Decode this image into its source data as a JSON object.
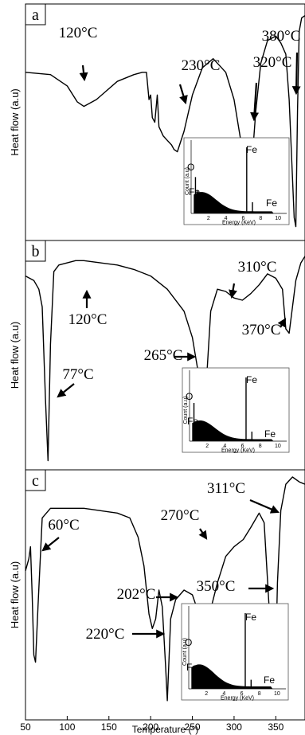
{
  "chart_data": {
    "type": "line",
    "xlabel": "Temperature (°)",
    "xlim": [
      50,
      385
    ],
    "x_ticks": [
      "50",
      "100",
      "150",
      "200",
      "250",
      "300",
      "350"
    ],
    "ylabel": "Heat flow (a.u)",
    "panels": [
      {
        "panel_label": "a",
        "ylabel": "Heat flow (a.u)",
        "series": [
          {
            "x": [
              50,
              80,
              100,
              112,
              120,
              135,
              160,
              180,
              190,
              195,
              198,
              200,
              202,
              205,
              208,
              210,
              215,
              220,
              225,
              228,
              232,
              240,
              250,
              262,
              275,
              290,
              300,
              308,
              312,
              318,
              322,
              326,
              332,
              340,
              350,
              356,
              362,
              366,
              372,
              374,
              376,
              378,
              381,
              385
            ],
            "y": [
              0.72,
              0.71,
              0.66,
              0.59,
              0.57,
              0.6,
              0.68,
              0.71,
              0.72,
              0.72,
              0.6,
              0.62,
              0.52,
              0.5,
              0.62,
              0.48,
              0.44,
              0.42,
              0.4,
              0.38,
              0.37,
              0.46,
              0.62,
              0.74,
              0.78,
              0.72,
              0.6,
              0.42,
              0.3,
              0.28,
              0.35,
              0.55,
              0.76,
              0.86,
              0.88,
              0.85,
              0.8,
              0.6,
              0.08,
              0.04,
              0.55,
              0.9,
              0.96,
              0.97
            ]
          }
        ],
        "annotations": [
          {
            "text": "120°C",
            "x": 120
          },
          {
            "text": "230°C",
            "x": 230
          },
          {
            "text": "320°C",
            "x": 320
          },
          {
            "text": "380°C",
            "x": 374
          }
        ],
        "inset": {
          "element_labels": [
            "O",
            "Fe",
            "Fe",
            "Fe"
          ],
          "xlabel": "Energy (KeV)",
          "ylabel": "Count (a.u)",
          "x_ticks": [
            "2",
            "4",
            "6",
            "8",
            "10"
          ],
          "xlim": [
            0,
            11
          ],
          "peaks": [
            {
              "x": 0.5,
              "y": 0.55
            },
            {
              "x": 0.7,
              "y": 0.35
            },
            {
              "x": 6.4,
              "y": 1.0
            },
            {
              "x": 7.06,
              "y": 0.17
            }
          ]
        }
      },
      {
        "panel_label": "b",
        "ylabel": "Heat flow (a.u)",
        "series": [
          {
            "x": [
              50,
              60,
              66,
              70,
              74,
              77,
              80,
              84,
              90,
              100,
              110,
              120,
              140,
              160,
              180,
              200,
              220,
              240,
              250,
              258,
              262,
              265,
              268,
              272,
              280,
              290,
              300,
              310,
              320,
              330,
              340,
              350,
              358,
              362,
              366,
              370,
              374,
              380,
              385
            ],
            "y": [
              0.86,
              0.84,
              0.8,
              0.72,
              0.3,
              0.02,
              0.55,
              0.88,
              0.91,
              0.92,
              0.93,
              0.93,
              0.92,
              0.91,
              0.89,
              0.86,
              0.8,
              0.7,
              0.58,
              0.4,
              0.32,
              0.3,
              0.45,
              0.7,
              0.8,
              0.79,
              0.76,
              0.75,
              0.78,
              0.82,
              0.87,
              0.85,
              0.8,
              0.62,
              0.6,
              0.72,
              0.84,
              0.92,
              0.95
            ]
          }
        ],
        "annotations": [
          {
            "text": "77°C",
            "x": 77
          },
          {
            "text": "120°C",
            "x": 120
          },
          {
            "text": "265°C",
            "x": 265
          },
          {
            "text": "310°C",
            "x": 310
          },
          {
            "text": "370°C",
            "x": 370
          }
        ],
        "inset": {
          "element_labels": [
            "O",
            "Fe",
            "Fe",
            "Fe"
          ],
          "xlabel": "Energy (KeV)",
          "ylabel": "Count (a.u)",
          "x_ticks": [
            "2",
            "4",
            "6",
            "8",
            "10"
          ],
          "xlim": [
            0,
            11
          ],
          "peaks": [
            {
              "x": 0.5,
              "y": 0.6
            },
            {
              "x": 0.7,
              "y": 0.3
            },
            {
              "x": 6.4,
              "y": 1.0
            },
            {
              "x": 7.06,
              "y": 0.15
            }
          ]
        }
      },
      {
        "panel_label": "c",
        "ylabel": "Heat flow (a.u)",
        "series": [
          {
            "x": [
              50,
              54,
              56,
              58,
              60,
              62,
              65,
              70,
              80,
              100,
              120,
              140,
              160,
              175,
              185,
              192,
              198,
              202,
              206,
              210,
              214,
              218,
              220,
              224,
              230,
              240,
              250,
              258,
              265,
              272,
              280,
              290,
              300,
              311,
              320,
              330,
              336,
              342,
              345,
              348,
              350,
              352,
              356,
              362,
              370,
              378,
              385
            ],
            "y": [
              0.6,
              0.65,
              0.7,
              0.5,
              0.25,
              0.22,
              0.45,
              0.82,
              0.86,
              0.86,
              0.86,
              0.85,
              0.84,
              0.82,
              0.74,
              0.62,
              0.42,
              0.36,
              0.4,
              0.52,
              0.45,
              0.2,
              0.06,
              0.4,
              0.48,
              0.52,
              0.5,
              0.42,
              0.4,
              0.44,
              0.55,
              0.66,
              0.7,
              0.73,
              0.78,
              0.84,
              0.8,
              0.45,
              0.28,
              0.22,
              0.24,
              0.55,
              0.85,
              0.96,
              0.99,
              0.97,
              0.96
            ]
          }
        ],
        "annotations": [
          {
            "text": "60°C",
            "x": 60
          },
          {
            "text": "202°C",
            "x": 202
          },
          {
            "text": "220°C",
            "x": 220
          },
          {
            "text": "270°C",
            "x": 265
          },
          {
            "text": "311°C",
            "x": 311
          },
          {
            "text": "350°C",
            "x": 350
          }
        ],
        "inset": {
          "element_labels": [
            "O",
            "Fe",
            "Fe",
            "Fe"
          ],
          "xlabel": "Energy (KeV)",
          "ylabel": "Count (a.u)",
          "x_ticks": [
            "2",
            "4",
            "6",
            "8",
            "10"
          ],
          "xlim": [
            0,
            11
          ],
          "peaks": [
            {
              "x": 0.5,
              "y": 0.3
            },
            {
              "x": 0.7,
              "y": 0.25
            },
            {
              "x": 6.4,
              "y": 1.0
            },
            {
              "x": 7.06,
              "y": 0.12
            }
          ]
        }
      }
    ]
  }
}
